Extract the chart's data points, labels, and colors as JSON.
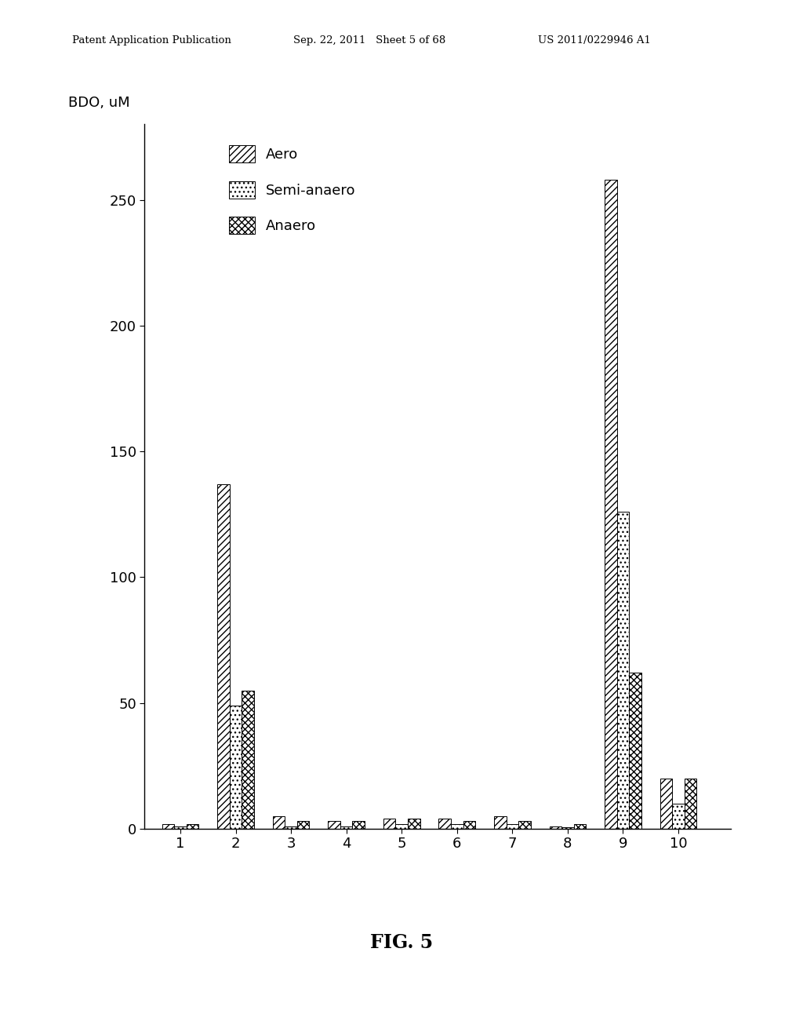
{
  "categories": [
    1,
    2,
    3,
    4,
    5,
    6,
    7,
    8,
    9,
    10
  ],
  "aero": [
    2,
    137,
    5,
    3,
    4,
    4,
    5,
    1,
    258,
    20
  ],
  "semi_anaero": [
    1,
    49,
    1,
    1,
    2,
    2,
    2,
    0.5,
    126,
    10
  ],
  "anaero": [
    2,
    55,
    3,
    3,
    4,
    3,
    3,
    2,
    62,
    20
  ],
  "ylabel": "BDO, uM",
  "yticks": [
    0,
    50,
    100,
    150,
    200,
    250
  ],
  "xticks": [
    1,
    2,
    3,
    4,
    5,
    6,
    7,
    8,
    9,
    10
  ],
  "ylim": [
    0,
    280
  ],
  "legend_labels": [
    "Aero",
    "Semi-anaero",
    "Anaero"
  ],
  "fig_label": "FIG. 5",
  "header_left": "Patent Application Publication",
  "header_center": "Sep. 22, 2011   Sheet 5 of 68",
  "header_right": "US 2011/0229946 A1",
  "bar_width": 0.22,
  "background_color": "#ffffff",
  "font_size": 13
}
